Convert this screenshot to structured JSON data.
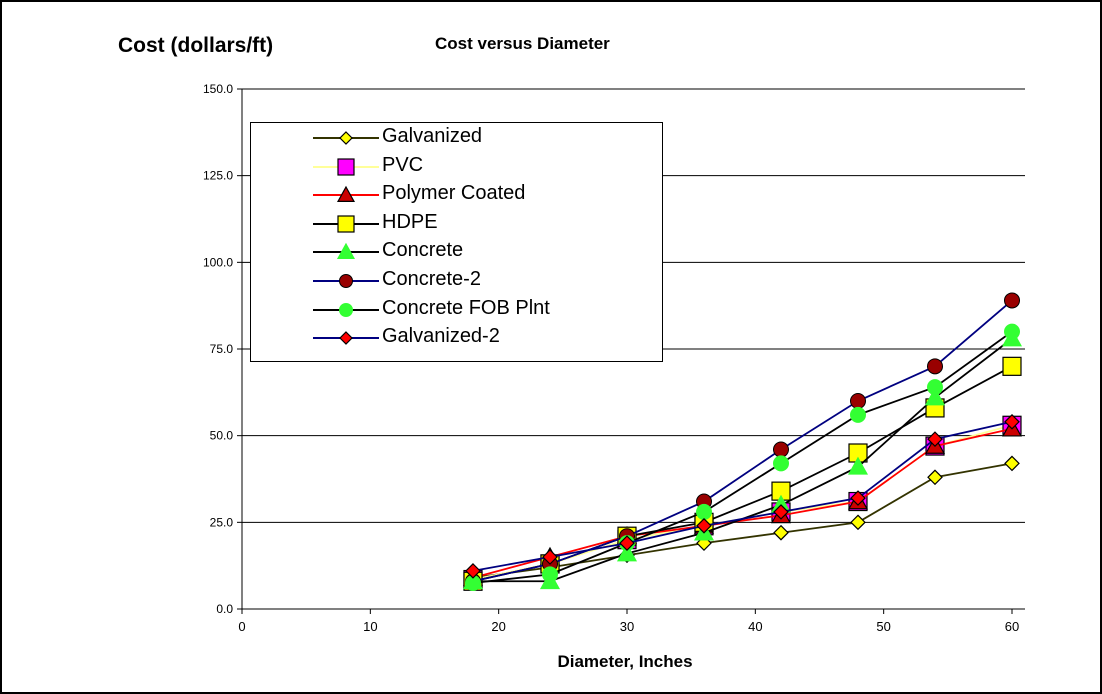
{
  "chart_data": {
    "type": "line",
    "title": "Cost versus Diameter",
    "ylabel": "Cost (dollars/ft)",
    "xlabel": "Diameter, Inches",
    "xlim": [
      0,
      60
    ],
    "ylim": [
      0,
      150
    ],
    "xticks": [
      "0",
      "10",
      "20",
      "30",
      "40",
      "50",
      "60"
    ],
    "yticks": [
      "0.0",
      "25.0",
      "50.0",
      "75.0",
      "100.0",
      "125.0",
      "150.0"
    ],
    "grid": "horizontal",
    "legend_position": "upper-left",
    "series": [
      {
        "name": "Galvanized",
        "color": "#333300",
        "marker": "diamond",
        "marker_fill": "#ffff00",
        "x": [
          18,
          24,
          30,
          36,
          42,
          48,
          54,
          60
        ],
        "y": [
          9,
          12,
          15.5,
          19,
          22,
          25,
          38,
          42
        ]
      },
      {
        "name": "PVC",
        "color": "#ffff99",
        "marker": "square",
        "marker_fill": "#ff00ff",
        "x": [
          18,
          24,
          30,
          36,
          42,
          48,
          54,
          60
        ],
        "y": [
          8.5,
          13,
          20,
          24,
          28,
          31,
          47,
          53
        ]
      },
      {
        "name": "Polymer Coated",
        "color": "#ff0000",
        "marker": "triangle",
        "marker_fill": "#cc0000",
        "x": [
          18,
          24,
          30,
          36,
          42,
          48,
          54,
          60
        ],
        "y": [
          9,
          15,
          21,
          24,
          27,
          31,
          47,
          52
        ]
      },
      {
        "name": "HDPE",
        "color": "#000000",
        "marker": "square",
        "marker_fill": "#ffff00",
        "x": [
          18,
          24,
          30,
          36,
          42,
          48,
          54,
          60
        ],
        "y": [
          8,
          13,
          21,
          25,
          34,
          45,
          58,
          70
        ]
      },
      {
        "name": "Concrete",
        "color": "#000000",
        "marker": "triangle",
        "marker_fill": "#33ff33",
        "x": [
          18,
          24,
          30,
          36,
          42,
          48,
          54,
          60
        ],
        "y": [
          8,
          8,
          16,
          22,
          30,
          41,
          61,
          78
        ]
      },
      {
        "name": "Concrete-2",
        "color": "#000080",
        "marker": "circle",
        "marker_fill": "#990000",
        "x": [
          18,
          24,
          30,
          36,
          42,
          48,
          54,
          60
        ],
        "y": [
          8,
          13,
          21,
          31,
          46,
          60,
          70,
          89
        ]
      },
      {
        "name": "Concrete FOB Plnt",
        "color": "#000000",
        "marker": "circle",
        "marker_fill": "#33ff33",
        "x": [
          18,
          24,
          30,
          36,
          42,
          48,
          54,
          60
        ],
        "y": [
          7.5,
          10,
          19,
          28,
          42,
          56,
          64,
          80
        ]
      },
      {
        "name": "Galvanized-2",
        "color": "#000080",
        "marker": "diamond",
        "marker_fill": "#ff0000",
        "x": [
          18,
          24,
          30,
          36,
          42,
          48,
          54,
          60
        ],
        "y": [
          11,
          15,
          19,
          24,
          28,
          32,
          49,
          54
        ]
      }
    ]
  }
}
